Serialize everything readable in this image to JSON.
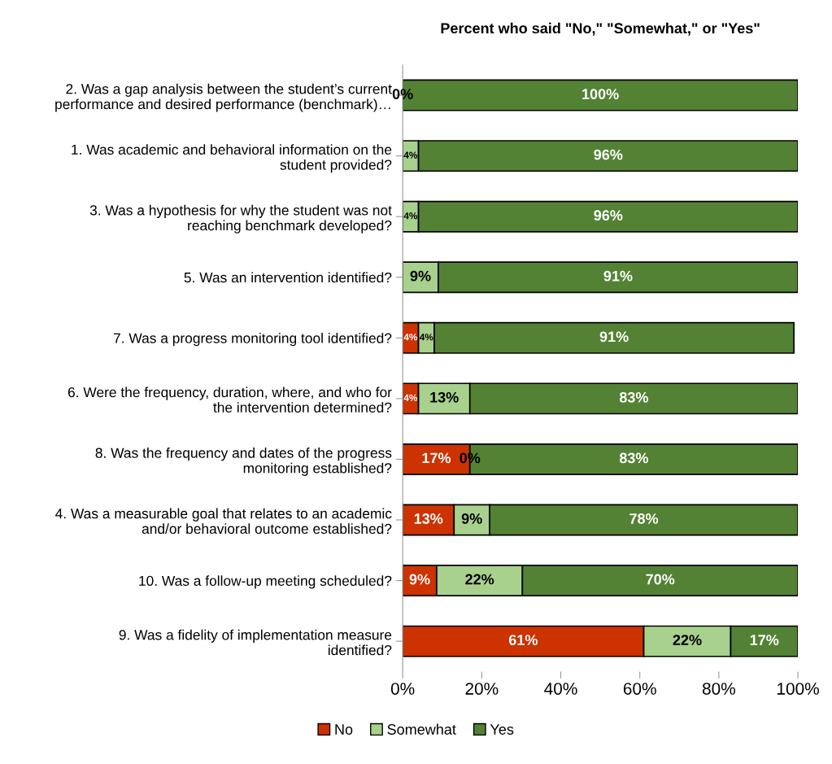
{
  "chart_data": {
    "type": "bar",
    "orientation": "horizontal",
    "stacked": true,
    "title": "Percent who said \"No,\" \"Somewhat,\" or \"Yes\"",
    "categories": [
      "2. Was a gap analysis between the student’s current\nperformance and desired performance (benchmark)…",
      "1. Was academic and behavioral information on the\nstudent provided?",
      "3. Was a hypothesis for why the student was not\nreaching benchmark developed?",
      "5. Was an intervention identified?",
      "7. Was a progress monitoring tool identified?",
      "6. Were the frequency, duration, where, and who for\nthe intervention determined?",
      "8. Was the frequency and dates of the progress\nmonitoring established?",
      "4. Was a measurable goal that relates to an academic\nand/or behavioral outcome established?",
      "10. Was a follow-up meeting scheduled?",
      "9. Was a fidelity of implementation measure\nidentified?"
    ],
    "series": [
      {
        "name": "No",
        "color": "#cc3300",
        "values": [
          0,
          0,
          0,
          0,
          4,
          4,
          17,
          13,
          8.6,
          61
        ],
        "value_labels": [
          null,
          null,
          null,
          null,
          "4%",
          "4%",
          "17%",
          "13%",
          "9%",
          "61%"
        ]
      },
      {
        "name": "Somewhat",
        "color": "#a9d18e",
        "values": [
          0,
          4,
          4,
          9,
          4,
          13,
          0,
          9,
          21.7,
          22
        ],
        "value_labels": [
          null,
          "4%",
          "4%",
          "9%",
          "4%",
          "13%",
          null,
          "9%",
          "22%",
          "22%"
        ]
      },
      {
        "name": "Yes",
        "color": "#548235",
        "values": [
          100,
          96,
          96,
          91,
          91,
          83,
          83,
          78,
          69.7,
          17
        ],
        "value_labels": [
          "100%",
          "96%",
          "96%",
          "91%",
          "91%",
          "83%",
          "83%",
          "78%",
          "70%",
          "17%"
        ]
      }
    ],
    "xlim": [
      0,
      100
    ],
    "xticks": [
      {
        "value": 0,
        "label": "0%"
      },
      {
        "value": 20,
        "label": "20%"
      },
      {
        "value": 40,
        "label": "40%"
      },
      {
        "value": 60,
        "label": "60%"
      },
      {
        "value": 80,
        "label": "80%"
      },
      {
        "value": 100,
        "label": "100%"
      }
    ],
    "annotations": [
      {
        "text": "0%",
        "x": 0,
        "y": "2. Was a gap analysis between the student’s current\nperformance and desired performance (benchmark)…"
      },
      {
        "text": "0%",
        "x": 17,
        "y": "8. Was the frequency and dates of the progress\nmonitoring established?"
      }
    ],
    "grid": false,
    "legend": "bottom"
  }
}
